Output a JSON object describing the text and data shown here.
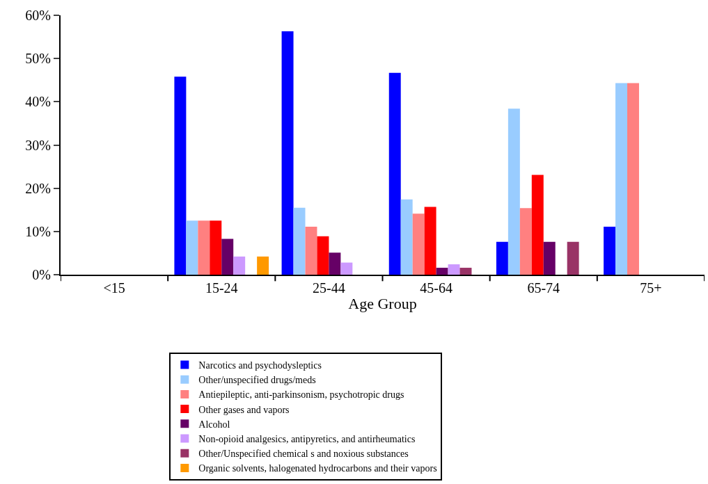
{
  "chart_data": {
    "type": "bar",
    "xlabel": "Age Group",
    "categories": [
      "<15",
      "15-24",
      "25-44",
      "45-64",
      "65-74",
      "75+"
    ],
    "series": [
      {
        "name": "Narcotics and psychodysleptics",
        "color": "#0000ff",
        "values": [
          0,
          45.8,
          56.3,
          46.7,
          7.6,
          11.1
        ]
      },
      {
        "name": "Other/unspecified drugs/meds",
        "color": "#99ccff",
        "values": [
          0,
          12.5,
          15.5,
          17.4,
          38.4,
          44.3
        ]
      },
      {
        "name": "Antiepileptic, anti-parkinsonism, psychotropic drugs",
        "color": "#ff8080",
        "values": [
          0,
          12.5,
          11.1,
          14.1,
          15.4,
          44.3
        ]
      },
      {
        "name": "Other gases and vapors",
        "color": "#ff0000",
        "values": [
          0,
          12.5,
          8.9,
          15.7,
          23.1,
          0
        ]
      },
      {
        "name": "Alcohol",
        "color": "#660066",
        "values": [
          0,
          8.3,
          5.1,
          1.6,
          7.6,
          0
        ]
      },
      {
        "name": "Non-opioid analgesics, antipyretics, and antirheumatics",
        "color": "#cc99ff",
        "values": [
          0,
          4.2,
          2.8,
          2.4,
          0,
          0
        ]
      },
      {
        "name": "Other/Unspecified chemical s and noxious substances",
        "color": "#993366",
        "values": [
          0,
          0,
          0,
          1.6,
          7.6,
          0
        ]
      },
      {
        "name": "Organic solvents, halogenated hydrocarbons and their vapors",
        "color": "#ff9900",
        "values": [
          0,
          4.2,
          0,
          0,
          0,
          0
        ]
      }
    ],
    "ylim": [
      0,
      60
    ],
    "yticks": [
      {
        "value": 0,
        "label": "0%"
      },
      {
        "value": 10,
        "label": "10%"
      },
      {
        "value": 20,
        "label": "20%"
      },
      {
        "value": 30,
        "label": "30%"
      },
      {
        "value": 40,
        "label": "40%"
      },
      {
        "value": 50,
        "label": "50%"
      },
      {
        "value": 60,
        "label": "60%"
      }
    ],
    "legend": "bottom"
  }
}
